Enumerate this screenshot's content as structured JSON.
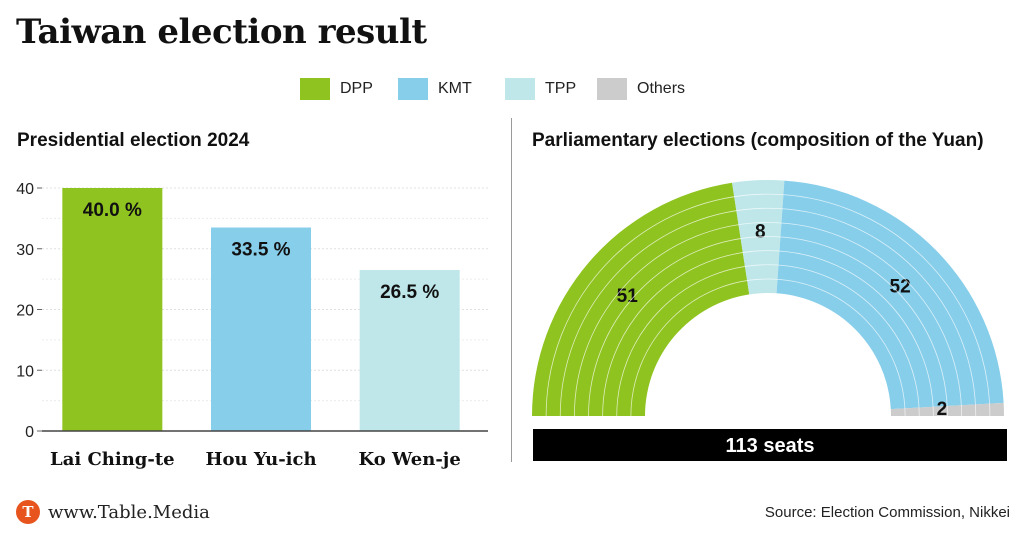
{
  "title": "Taiwan election result",
  "legend": [
    {
      "label": "DPP",
      "color": "#8fc31f"
    },
    {
      "label": "KMT",
      "color": "#87ceeb"
    },
    {
      "label": "TPP",
      "color": "#bfe7ea"
    },
    {
      "label": "Others",
      "color": "#cccccc"
    }
  ],
  "chart_data": [
    {
      "type": "bar",
      "title": "Presidential election 2024",
      "categories": [
        "Lai Ching-te",
        "Hou Yu-ich",
        "Ko Wen-je"
      ],
      "values": [
        40.0,
        33.5,
        26.5
      ],
      "data_labels": [
        "40.0 %",
        "33.5 %",
        "26.5 %"
      ],
      "colors": [
        "#8fc31f",
        "#87ceeb",
        "#bfe7ea"
      ],
      "yticks": [
        0,
        10,
        20,
        30,
        40
      ],
      "ylim": [
        0,
        40
      ],
      "grid": true
    },
    {
      "type": "pie",
      "title": "Parliamentary elections (composition of the Yuan)",
      "subtype": "semicircle-parliament",
      "categories": [
        "DPP",
        "TPP",
        "KMT",
        "Others"
      ],
      "values": [
        51,
        8,
        52,
        2
      ],
      "data_labels": [
        "51",
        "8",
        "52",
        "2"
      ],
      "colors": [
        "#8fc31f",
        "#bfe7ea",
        "#87ceeb",
        "#cccccc"
      ],
      "total_label": "113 seats"
    }
  ],
  "footer": {
    "logo_letter": "T",
    "brand": "www.Table.Media",
    "source": "Source: Election Commission, Nikkei"
  }
}
